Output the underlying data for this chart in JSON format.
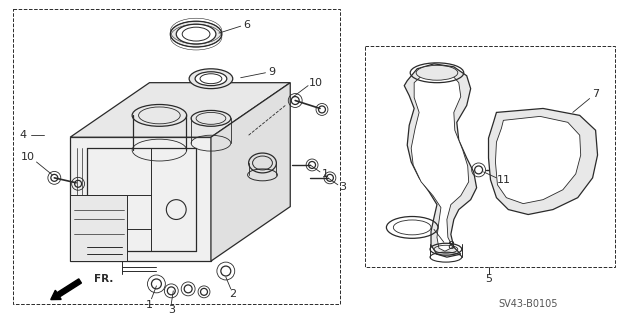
{
  "bg_color": "#ffffff",
  "diagram_code": "SV43-B0105",
  "fig_width": 6.38,
  "fig_height": 3.2,
  "dpi": 100,
  "lc": "#2a2a2a",
  "tc": "#2a2a2a",
  "lw": 0.9
}
